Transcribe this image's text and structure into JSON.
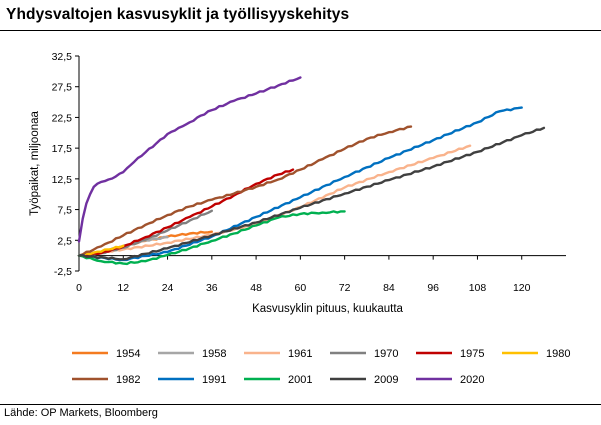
{
  "page": {
    "title": "Yhdysvaltojen kasvusyklit ja työllisyyskehitys",
    "source": "Lähde: OP Markets, Bloomberg"
  },
  "chart_data": {
    "type": "line",
    "title": "Yhdysvaltojen kasvusyklit ja työllisyyskehitys",
    "xlabel": "Kasvusyklin pituus, kuukautta",
    "ylabel": "Työpaikat, miljoonaa",
    "xlim": [
      0,
      132
    ],
    "ylim": [
      -2.5,
      32.5
    ],
    "x_ticks": [
      0,
      12,
      24,
      36,
      48,
      60,
      72,
      84,
      96,
      108,
      120
    ],
    "x_tick_labels": [
      "0",
      "12",
      "24",
      "36",
      "48",
      "60",
      "72",
      "84",
      "96",
      "108",
      "120"
    ],
    "y_ticks": [
      -2.5,
      2.5,
      7.5,
      12.5,
      17.5,
      22.5,
      27.5,
      32.5
    ],
    "y_tick_labels": [
      "-2,5",
      "2,5",
      "7,5",
      "12,5",
      "17,5",
      "22,5",
      "27,5",
      "32,5"
    ],
    "grid": false,
    "legend_position": "bottom",
    "series": [
      {
        "name": "1954",
        "color": "#f47b20",
        "x": [
          0,
          6,
          12,
          18,
          24,
          30,
          36
        ],
        "y": [
          0,
          0.5,
          1.5,
          2.4,
          3.1,
          3.6,
          3.9
        ]
      },
      {
        "name": "1958",
        "color": "#a6a6a6",
        "x": [
          0,
          6,
          12,
          18,
          24
        ],
        "y": [
          0,
          0.6,
          1.6,
          2.5,
          3.0
        ]
      },
      {
        "name": "1961",
        "color": "#f9b38c",
        "x": [
          0,
          12,
          24,
          36,
          48,
          60,
          72,
          84,
          96,
          106
        ],
        "y": [
          0,
          1.0,
          2.1,
          3.4,
          5.1,
          7.9,
          11.1,
          13.6,
          15.9,
          17.9
        ]
      },
      {
        "name": "1970",
        "color": "#808080",
        "x": [
          0,
          6,
          12,
          18,
          24,
          30,
          36
        ],
        "y": [
          0,
          0.4,
          1.3,
          2.6,
          4.1,
          5.7,
          7.3
        ]
      },
      {
        "name": "1975",
        "color": "#c00000",
        "x": [
          0,
          6,
          12,
          18,
          24,
          30,
          36,
          42,
          48,
          54,
          58
        ],
        "y": [
          0,
          0.4,
          1.5,
          3.0,
          4.6,
          6.3,
          8.0,
          9.8,
          11.7,
          13.2,
          14.0
        ]
      },
      {
        "name": "1980",
        "color": "#ffc000",
        "x": [
          0,
          4,
          8,
          12
        ],
        "y": [
          0,
          0.5,
          1.0,
          1.6
        ]
      },
      {
        "name": "1982",
        "color": "#a0522d",
        "x": [
          0,
          6,
          12,
          18,
          24,
          30,
          36,
          42,
          48,
          54,
          60,
          66,
          72,
          78,
          84,
          90
        ],
        "y": [
          0,
          1.5,
          3.3,
          5.0,
          6.6,
          8.0,
          9.1,
          10.1,
          11.2,
          12.4,
          14.0,
          15.7,
          17.4,
          19.0,
          20.1,
          21.0
        ]
      },
      {
        "name": "1991",
        "color": "#0070c0",
        "x": [
          0,
          12,
          24,
          36,
          48,
          60,
          72,
          84,
          96,
          108,
          114,
          120
        ],
        "y": [
          0,
          -0.7,
          0.6,
          3.1,
          6.3,
          9.5,
          12.8,
          15.9,
          18.8,
          21.7,
          23.5,
          24.1
        ]
      },
      {
        "name": "2001",
        "color": "#00b050",
        "x": [
          0,
          6,
          12,
          18,
          24,
          30,
          36,
          42,
          48,
          54,
          60,
          66,
          72
        ],
        "y": [
          0,
          -0.9,
          -1.3,
          -0.9,
          0.1,
          1.2,
          2.4,
          3.6,
          4.9,
          6.2,
          6.8,
          7.0,
          7.2
        ]
      },
      {
        "name": "2009",
        "color": "#404040",
        "x": [
          0,
          12,
          24,
          36,
          48,
          60,
          72,
          84,
          96,
          108,
          120,
          126
        ],
        "y": [
          0,
          -0.6,
          1.2,
          3.3,
          5.4,
          7.8,
          10.1,
          12.3,
          14.5,
          16.9,
          19.6,
          20.8
        ]
      },
      {
        "name": "2020",
        "color": "#7030a0",
        "x": [
          0,
          1,
          2,
          3,
          4,
          6,
          8,
          10,
          12,
          15,
          18,
          21,
          24,
          27,
          30,
          33,
          36,
          42,
          48,
          54,
          60
        ],
        "y": [
          2.3,
          6.0,
          8.5,
          10.0,
          11.2,
          12.0,
          12.4,
          12.9,
          13.6,
          15.3,
          16.8,
          18.3,
          19.8,
          20.8,
          21.7,
          22.8,
          23.7,
          25.2,
          26.4,
          27.7,
          29.0
        ]
      }
    ]
  }
}
